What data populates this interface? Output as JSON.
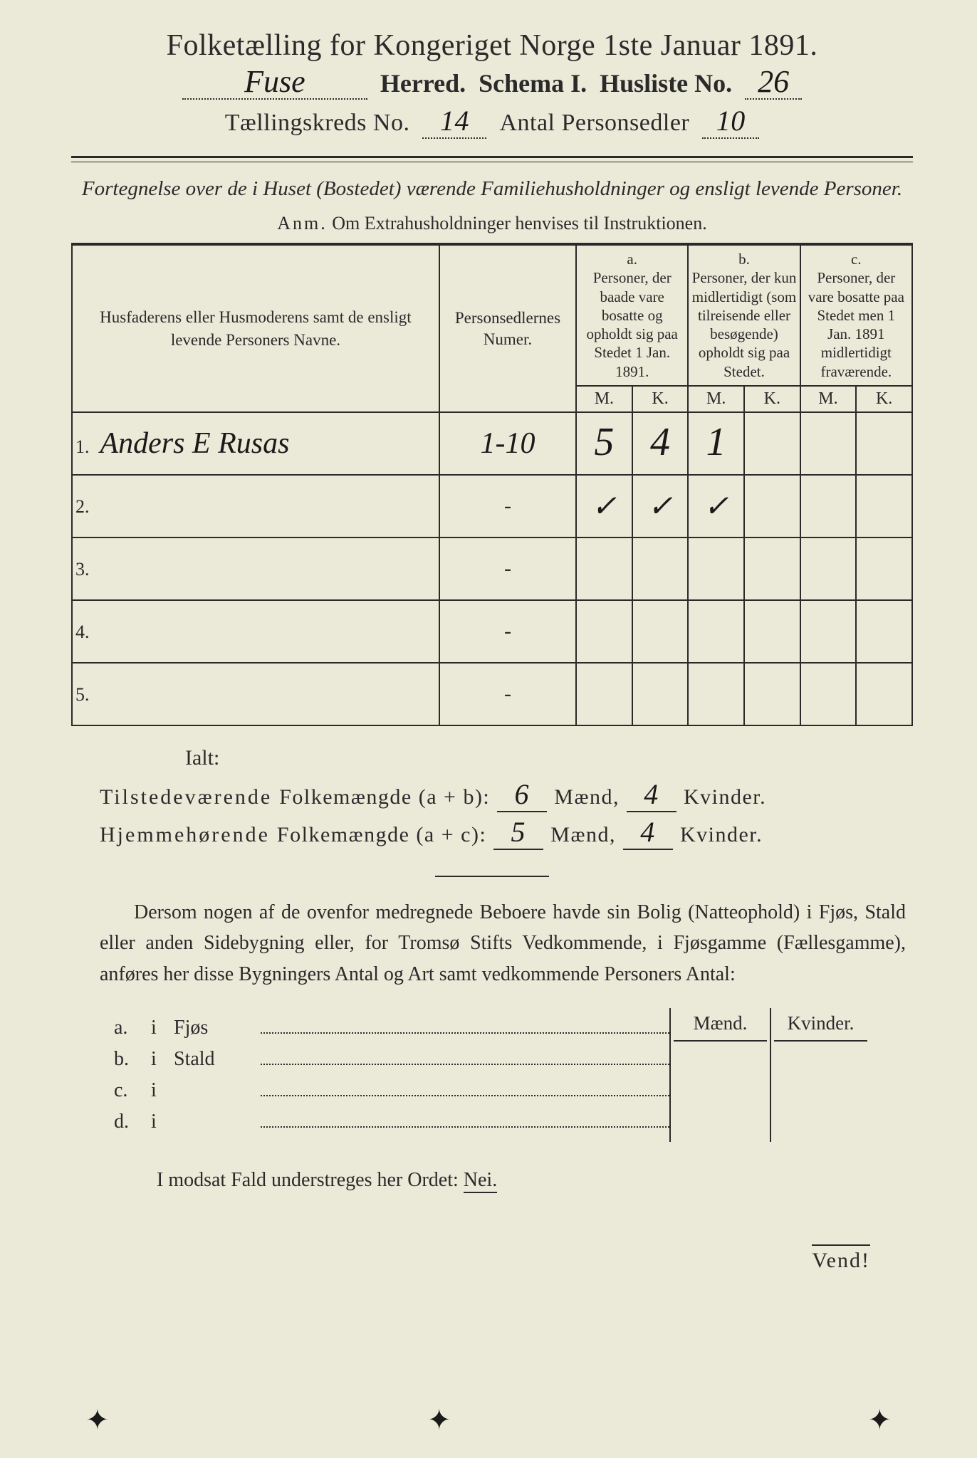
{
  "title": "Folketælling for Kongeriget Norge 1ste Januar 1891.",
  "header": {
    "herred_value": "Fuse",
    "herred_label": "Herred.",
    "schema_label": "Schema I.",
    "husliste_label": "Husliste No.",
    "husliste_value": "26",
    "kreds_label": "Tællingskreds No.",
    "kreds_value": "14",
    "antal_label": "Antal Personsedler",
    "antal_value": "10"
  },
  "subtitle": "Fortegnelse over de i Huset (Bostedet) værende Familiehusholdninger og ensligt levende Personer.",
  "anm_label": "Anm.",
  "anm_text": "Om Extrahusholdninger henvises til Instruktionen.",
  "table": {
    "col_names": "Husfaderens eller Husmoderens samt de ensligt levende Personers Navne.",
    "col_numer": "Personsedlernes Numer.",
    "col_a_hdr": "a.",
    "col_a": "Personer, der baade vare bosatte og opholdt sig paa Stedet 1 Jan. 1891.",
    "col_b_hdr": "b.",
    "col_b": "Personer, der kun midlertidigt (som tilreisende eller besøgende) opholdt sig paa Stedet.",
    "col_c_hdr": "c.",
    "col_c": "Personer, der vare bosatte paa Stedet men 1 Jan. 1891 midlertidigt fraværende.",
    "m": "M.",
    "k": "K.",
    "rows": [
      {
        "n": "1.",
        "name": "Anders E Rusas",
        "num": "1-10",
        "aM": "5",
        "aK": "4",
        "bM": "1",
        "bK": "",
        "cM": "",
        "cK": ""
      },
      {
        "n": "2.",
        "name": "",
        "num": "-",
        "aM": "✓",
        "aK": "✓",
        "bM": "✓",
        "bK": "",
        "cM": "",
        "cK": ""
      },
      {
        "n": "3.",
        "name": "",
        "num": "-",
        "aM": "",
        "aK": "",
        "bM": "",
        "bK": "",
        "cM": "",
        "cK": ""
      },
      {
        "n": "4.",
        "name": "",
        "num": "-",
        "aM": "",
        "aK": "",
        "bM": "",
        "bK": "",
        "cM": "",
        "cK": ""
      },
      {
        "n": "5.",
        "name": "",
        "num": "-",
        "aM": "",
        "aK": "",
        "bM": "",
        "bK": "",
        "cM": "",
        "cK": ""
      }
    ]
  },
  "ialt": "Ialt:",
  "sum1": {
    "label": "Tilstedeværende",
    "label2": "Folkemængde (a + b):",
    "m": "6",
    "m_lbl": "Mænd,",
    "k": "4",
    "k_lbl": "Kvinder."
  },
  "sum2": {
    "label": "Hjemmehørende",
    "label2": "Folkemængde (a + c):",
    "m": "5",
    "m_lbl": "Mænd,",
    "k": "4",
    "k_lbl": "Kvinder."
  },
  "para": "Dersom nogen af de ovenfor medregnede Beboere havde sin Bolig (Natteophold) i Fjøs, Stald eller anden Sidebygning eller, for Tromsø Stifts Vedkommende, i Fjøsgamme (Fællesgamme), anføres her disse Bygningers Antal og Art samt vedkommende Personers Antal:",
  "side": {
    "maend": "Mænd.",
    "kvinder": "Kvinder.",
    "rows": [
      {
        "lab": "a.",
        "i": "i",
        "name": "Fjøs"
      },
      {
        "lab": "b.",
        "i": "i",
        "name": "Stald"
      },
      {
        "lab": "c.",
        "i": "i",
        "name": ""
      },
      {
        "lab": "d.",
        "i": "i",
        "name": ""
      }
    ]
  },
  "final_pre": "I modsat Fald understreges her Ordet: ",
  "final_nei": "Nei.",
  "vend": "Vend!"
}
